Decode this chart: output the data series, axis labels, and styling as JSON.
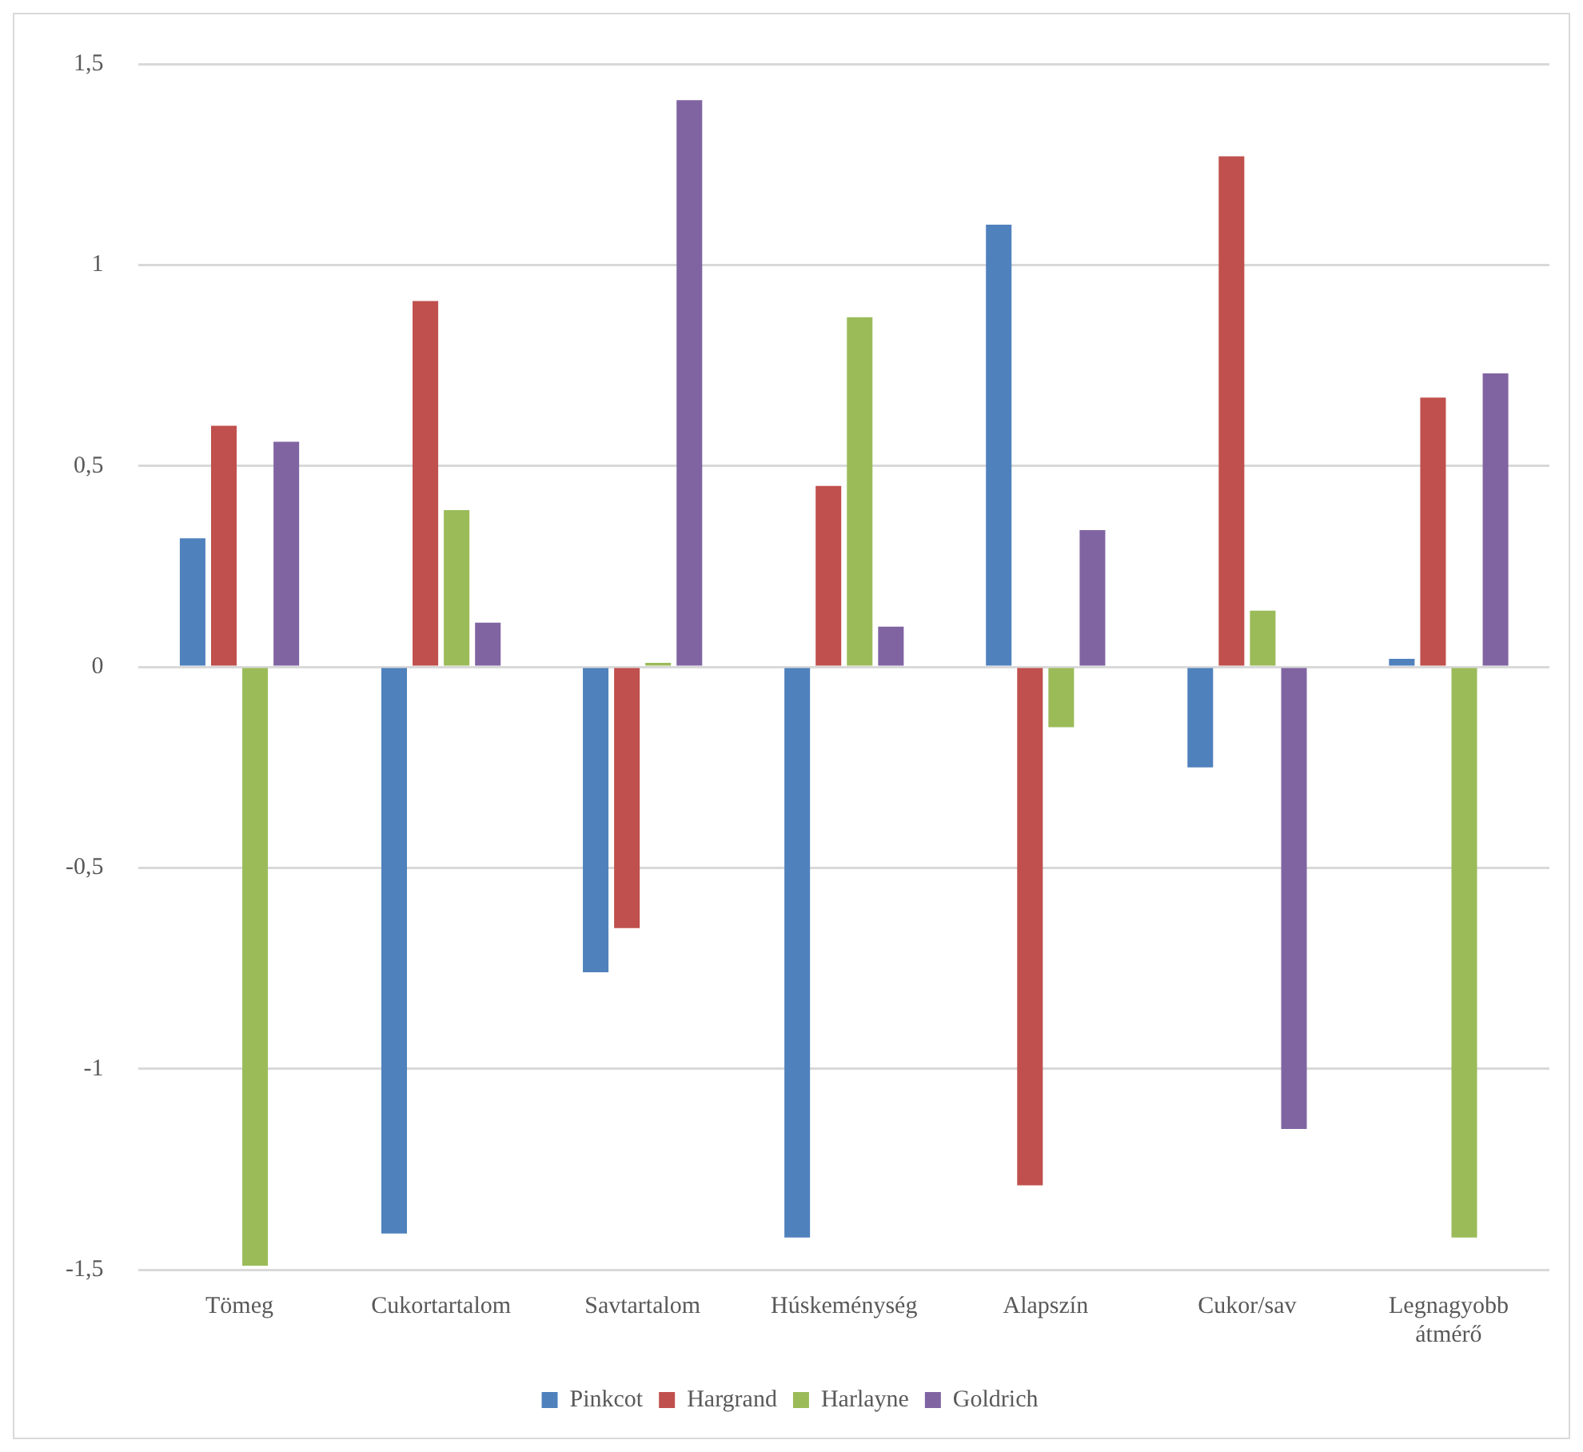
{
  "chart_data": {
    "type": "bar",
    "categories": [
      "Tömeg",
      "Cukortartalom",
      "Savtartalom",
      "Húskeménység",
      "Alapszín",
      "Cukor/sav",
      "Legnagyobb átmérő"
    ],
    "series": [
      {
        "name": "Pinkcot",
        "color": "#4f81bd",
        "values": [
          0.32,
          -1.41,
          -0.76,
          -1.42,
          1.1,
          -0.25,
          0.02
        ]
      },
      {
        "name": "Hargrand",
        "color": "#c0504d",
        "values": [
          0.6,
          0.91,
          -0.65,
          0.45,
          -1.29,
          1.27,
          0.67
        ]
      },
      {
        "name": "Harlayne",
        "color": "#9bbb59",
        "values": [
          -1.49,
          0.39,
          0.01,
          0.87,
          -0.15,
          0.14,
          -1.42
        ]
      },
      {
        "name": "Goldrich",
        "color": "#8064a2",
        "values": [
          0.56,
          0.11,
          1.41,
          0.1,
          0.34,
          -1.15,
          0.73
        ]
      }
    ],
    "ylim": [
      -1.5,
      1.5
    ],
    "yticks": [
      {
        "value": -1.5,
        "label": "-1,5"
      },
      {
        "value": -1,
        "label": "-1"
      },
      {
        "value": -0.5,
        "label": "-0,5"
      },
      0,
      {
        "value": 0.5,
        "label": "0,5"
      },
      1,
      {
        "value": 1.5,
        "label": "1,5"
      }
    ],
    "grid": "y",
    "legend": "bottom"
  }
}
